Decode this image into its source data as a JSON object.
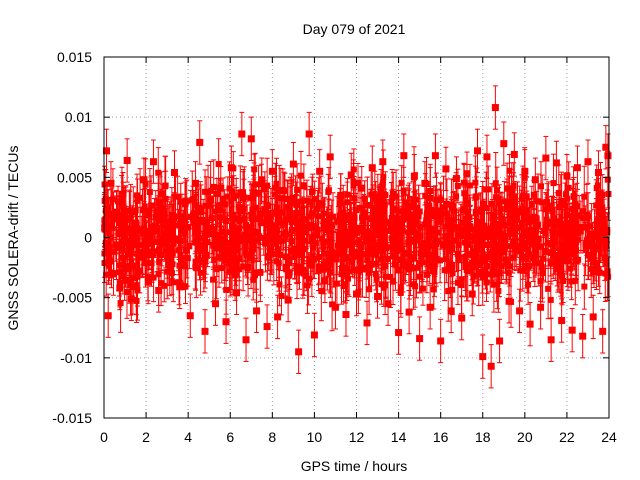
{
  "chart_data": {
    "type": "scatter",
    "title": "Day 079 of 2021",
    "xlabel": "GPS time / hours",
    "ylabel": "GNSS SOLERA-drift / TECUs",
    "xlim": [
      0,
      24
    ],
    "ylim": [
      -0.015,
      0.015
    ],
    "xticks": [
      0,
      2,
      4,
      6,
      8,
      10,
      12,
      14,
      16,
      18,
      20,
      22,
      24
    ],
    "yticks": [
      -0.015,
      -0.01,
      -0.005,
      0,
      0.005,
      0.01,
      0.015
    ],
    "ytick_labels": [
      "-0.015",
      "-0.01",
      "-0.005",
      "0",
      "0.005",
      "0.01",
      "0.015"
    ],
    "grid": true,
    "error_bars": true,
    "marker": "square",
    "color": "#ff0000",
    "series": [
      {
        "values_note": "",
        "x": [
          0.03,
          0.12,
          0.2,
          0.33,
          0.45,
          0.6,
          0.75,
          0.9,
          1.1,
          1.3,
          1.5,
          1.7,
          1.9,
          2.1,
          2.35,
          2.6,
          2.85,
          3.1,
          3.35,
          3.6,
          3.85,
          4.1,
          4.35,
          4.55,
          4.8,
          5.05,
          5.3,
          5.55,
          5.8,
          6.05,
          6.3,
          6.55,
          6.75,
          7.0,
          7.25,
          7.5,
          7.75,
          8.0,
          8.25,
          8.5,
          8.75,
          9.0,
          9.25,
          9.5,
          9.75,
          10.0,
          10.25,
          10.5,
          10.75,
          11.0,
          11.25,
          11.5,
          11.75,
          12.0,
          12.25,
          12.5,
          12.75,
          13.0,
          13.25,
          13.5,
          13.75,
          14.0,
          14.25,
          14.5,
          14.75,
          15.0,
          15.25,
          15.5,
          15.75,
          16.0,
          16.25,
          16.5,
          16.75,
          17.0,
          17.25,
          17.5,
          17.75,
          18.0,
          18.2,
          18.4,
          18.6,
          18.8,
          19.0,
          19.25,
          19.5,
          19.75,
          20.0,
          20.25,
          20.5,
          20.75,
          21.0,
          21.25,
          21.5,
          21.75,
          22.0,
          22.25,
          22.5,
          22.75,
          23.0,
          23.25,
          23.5,
          23.7,
          23.85,
          23.95
        ],
        "y": [
          0.0008,
          0.0072,
          -0.0065,
          0.0045,
          -0.003,
          0.0021,
          -0.0042,
          0.0036,
          0.0064,
          -0.0051,
          0.0012,
          -0.0028,
          0.0048,
          -0.0037,
          0.0063,
          -0.0044,
          0.0015,
          -0.0022,
          0.0054,
          -0.0041,
          0.0028,
          -0.0065,
          0.0045,
          0.0079,
          -0.0078,
          0.0032,
          -0.0055,
          0.0041,
          -0.007,
          0.0058,
          -0.0046,
          0.0086,
          -0.0085,
          0.0082,
          -0.0061,
          0.0048,
          -0.0074,
          0.0055,
          -0.0066,
          0.0039,
          -0.0052,
          0.0061,
          -0.0095,
          0.0043,
          0.0086,
          -0.0081,
          0.0055,
          -0.0036,
          0.0067,
          -0.0058,
          0.0035,
          -0.0064,
          0.0052,
          -0.0047,
          0.0041,
          -0.0071,
          0.0058,
          -0.0049,
          0.0063,
          -0.0055,
          0.0036,
          -0.0079,
          0.0068,
          -0.0062,
          0.0051,
          -0.0084,
          0.0045,
          -0.0058,
          0.0068,
          -0.0086,
          0.0057,
          -0.0061,
          0.0049,
          -0.0067,
          0.0053,
          -0.0047,
          0.0072,
          -0.0099,
          0.0067,
          -0.0107,
          0.0108,
          -0.0086,
          0.0078,
          -0.0053,
          0.0069,
          -0.0061,
          0.0055,
          -0.0072,
          0.0048,
          -0.0058,
          0.0066,
          -0.0085,
          0.0062,
          -0.0069,
          0.0051,
          -0.0077,
          0.0058,
          -0.0082,
          0.0063,
          -0.0066,
          0.0054,
          -0.0078,
          0.0075,
          0.0068
        ]
      }
    ]
  }
}
